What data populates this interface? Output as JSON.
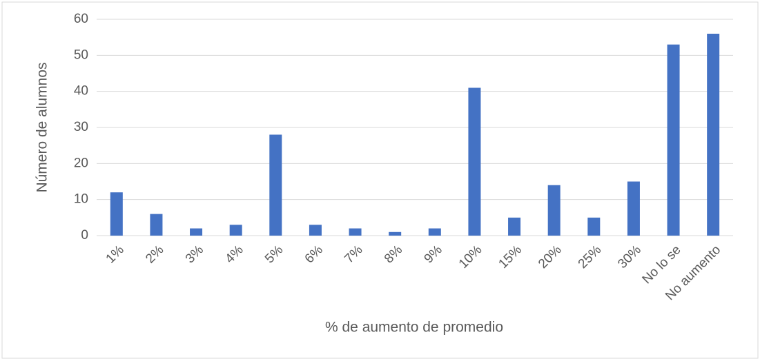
{
  "chart_data": {
    "type": "bar",
    "x_label": "% de aumento de promedio",
    "y_label": "Número de alumnos",
    "categories": [
      "1%",
      "2%",
      "3%",
      "4%",
      "5%",
      "6%",
      "7%",
      "8%",
      "9%",
      "10%",
      "15%",
      "20%",
      "25%",
      "30%",
      "No lo se",
      "No aumento"
    ],
    "values": [
      12,
      6,
      2,
      3,
      28,
      3,
      2,
      1,
      2,
      41,
      5,
      14,
      5,
      15,
      53,
      56
    ],
    "color": "#4472c4",
    "ylim": [
      0,
      60
    ],
    "yticks": [
      0,
      10,
      20,
      30,
      40,
      50,
      60
    ],
    "grid": true
  }
}
